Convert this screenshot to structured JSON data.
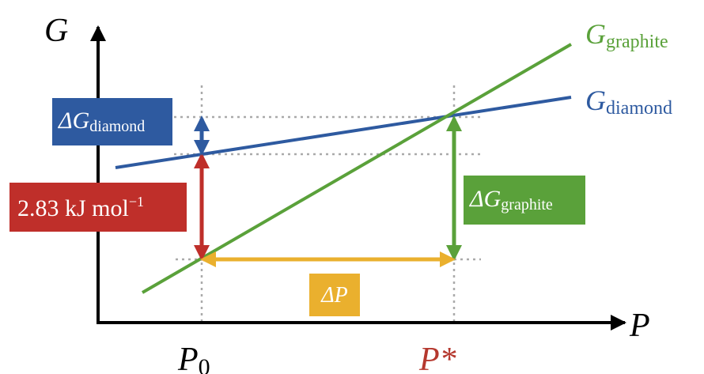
{
  "axes": {
    "y_symbol": "G",
    "x_symbol": "P"
  },
  "ticks": {
    "p0_main": "P",
    "p0_sub": "0",
    "pstar": "P*"
  },
  "curves": {
    "graphite": {
      "symbol": "G",
      "subscript": "graphite"
    },
    "diamond": {
      "symbol": "G",
      "subscript": "diamond"
    }
  },
  "labels": {
    "delta_g_diamond": {
      "delta": "ΔG",
      "subscript": "diamond"
    },
    "delta_g_graphite": {
      "delta": "ΔG",
      "subscript": "graphite"
    },
    "energy_gap": {
      "text": "2.83 kJ mol",
      "superscript": "−1"
    },
    "delta_p": "ΔP"
  },
  "colors": {
    "graphite": "#5aa13a",
    "diamond": "#2e5aa0",
    "energy_gap": "#bf2f2a",
    "delta_p": "#eab02e",
    "axis": "#000000",
    "guide": "#aaaaaa",
    "pstar_text": "#b5382e"
  }
}
